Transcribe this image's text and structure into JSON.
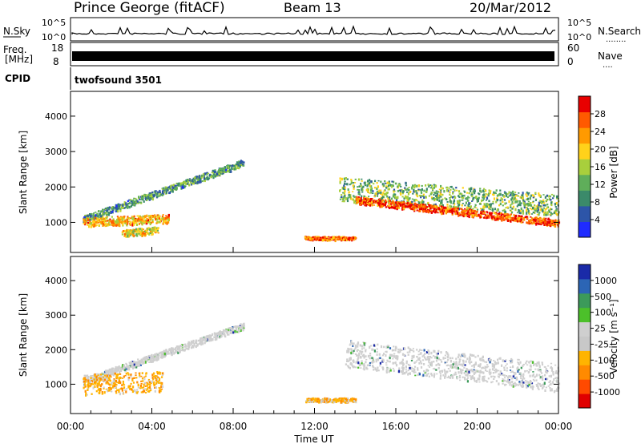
{
  "header": {
    "station": "Prince George (fitACF)",
    "beam": "Beam 13",
    "date": "20/Mar/2012"
  },
  "strip_labels": {
    "nsky": "N.Sky",
    "nsearch": "N.Search",
    "nsearch_dots": "........",
    "freq_line1": "Freq.",
    "freq_line2": "[MHz]",
    "nave": "Nave",
    "nave_dots": "....",
    "cpid": "CPID",
    "cpid_value": "twofsound 3501"
  },
  "strip_ticks": {
    "noise_left": [
      "10^5",
      "10^0"
    ],
    "noise_right": [
      "10^5",
      "10^0"
    ],
    "freq_left": [
      "18",
      "8"
    ],
    "nave_right": [
      "60",
      "0"
    ]
  },
  "colors": {
    "power": [
      "#1f2bff",
      "#2d55a8",
      "#3b8a6a",
      "#5fae5a",
      "#a8cf3c",
      "#ffd21a",
      "#ff9a00",
      "#ff5a00",
      "#e80000"
    ],
    "velocity": [
      "#1a2aa8",
      "#2c65b5",
      "#3c9a5a",
      "#4cc02a",
      "#cfcfcf",
      "#c8c8c8",
      "#ffb400",
      "#ff8a00",
      "#ff4a00",
      "#e00000"
    ]
  },
  "chart_data": [
    {
      "type": "heatmap",
      "name": "power",
      "xlabel": "",
      "ylabel": "Slant Range [km]",
      "x_range_hours": [
        0,
        24
      ],
      "ylim": [
        150,
        4700
      ],
      "y_ticks": [
        "1000",
        "2000",
        "3000",
        "4000"
      ],
      "colorbar": {
        "label": "Power [dB]",
        "ticks": [
          "4",
          "8",
          "12",
          "16",
          "20",
          "24",
          "28"
        ]
      },
      "scatter_regions": [
        {
          "t": [
            0.6,
            8.5
          ],
          "r_start": [
            1000,
            2600
          ],
          "r_end": [
            1200,
            2800
          ],
          "level": 0.3
        },
        {
          "t": [
            0.6,
            4.8
          ],
          "r_start": [
            900,
            1000
          ],
          "r_end": [
            1150,
            1250
          ],
          "level": 0.7
        },
        {
          "t": [
            2.5,
            4.3
          ],
          "r_start": [
            600,
            700
          ],
          "r_end": [
            800,
            900
          ],
          "level": 0.6
        },
        {
          "t": [
            11.5,
            14.0
          ],
          "r_start": [
            520,
            520
          ],
          "r_end": [
            620,
            620
          ],
          "level": 0.85
        },
        {
          "t": [
            13.2,
            24.0
          ],
          "r_start": [
            1600,
            1200
          ],
          "r_end": [
            2300,
            1800
          ],
          "level": 0.4
        },
        {
          "t": [
            14.0,
            24.0
          ],
          "r_start": [
            1550,
            900
          ],
          "r_end": [
            1750,
            1100
          ],
          "level": 0.9
        }
      ]
    },
    {
      "type": "heatmap",
      "name": "velocity",
      "xlabel": "Time UT",
      "ylabel": "Slant Range [km]",
      "x_range_hours": [
        0,
        24
      ],
      "ylim": [
        150,
        4700
      ],
      "x_ticks": [
        "00:00",
        "04:00",
        "08:00",
        "12:00",
        "16:00",
        "20:00",
        "00:00"
      ],
      "y_ticks": [
        "1000",
        "2000",
        "3000",
        "4000"
      ],
      "colorbar": {
        "label": "Velocity [m s⁻¹]",
        "ticks": [
          "1000",
          "500",
          "100",
          "25",
          "-25",
          "-100",
          "-500",
          "-1000"
        ]
      },
      "scatter_regions": [
        {
          "t": [
            0.6,
            8.5
          ],
          "r_start": [
            1000,
            2600
          ],
          "r_end": [
            1200,
            2800
          ],
          "level": "ground"
        },
        {
          "t": [
            0.6,
            4.5
          ],
          "r_start": [
            700,
            800
          ],
          "r_end": [
            1300,
            1400
          ],
          "level": "negative"
        },
        {
          "t": [
            11.5,
            14.0
          ],
          "r_start": [
            500,
            500
          ],
          "r_end": [
            620,
            620
          ],
          "level": "negative"
        },
        {
          "t": [
            13.5,
            24.0
          ],
          "r_start": [
            1500,
            800
          ],
          "r_end": [
            2300,
            1600
          ],
          "level": "ground"
        }
      ]
    }
  ]
}
